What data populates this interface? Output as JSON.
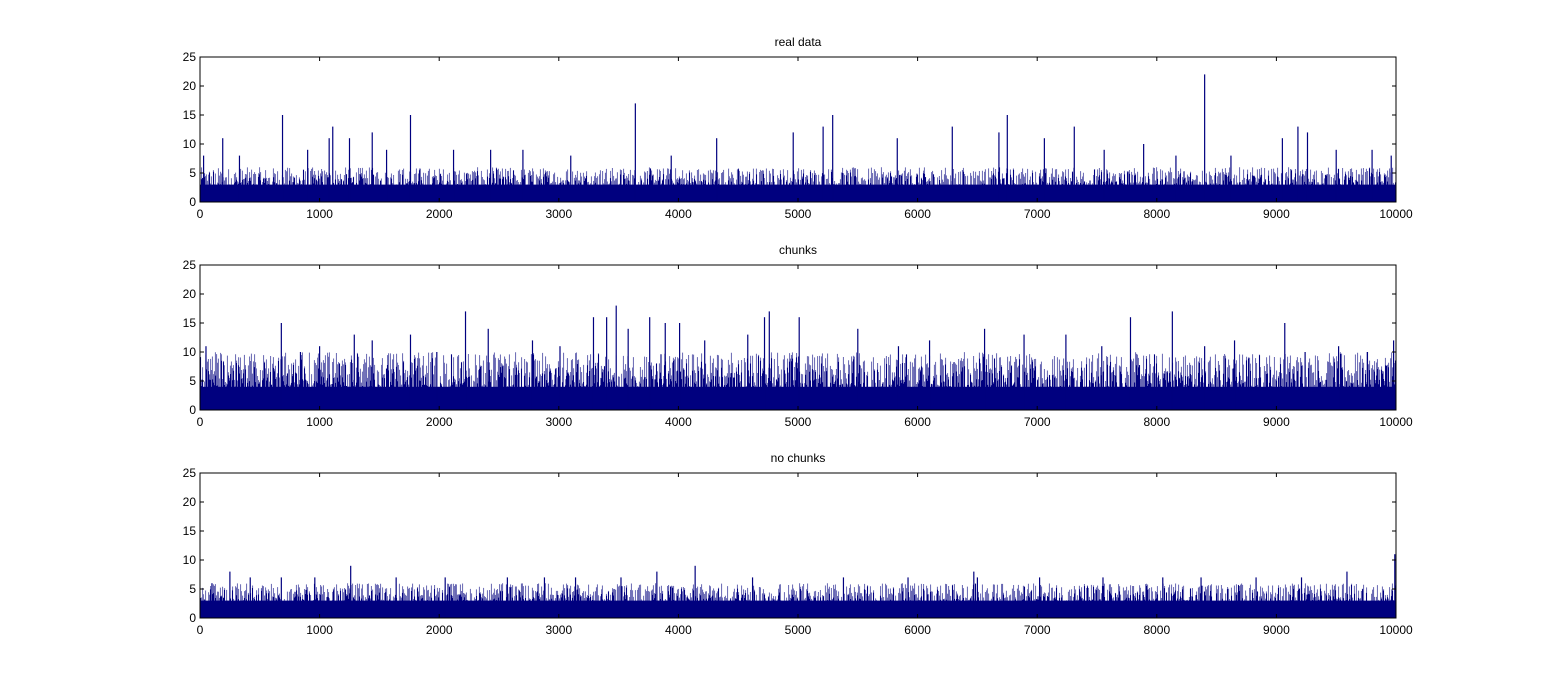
{
  "bar_color": "#00007f",
  "axis_color": "#000000",
  "chart_data": [
    {
      "type": "bar",
      "title": "real data",
      "xlabel": "",
      "ylabel": "",
      "xlim": [
        0,
        10000
      ],
      "ylim": [
        0,
        25
      ],
      "xticks": [
        0,
        1000,
        2000,
        3000,
        4000,
        5000,
        6000,
        7000,
        8000,
        9000,
        10000
      ],
      "yticks": [
        0,
        5,
        10,
        15,
        20,
        25
      ],
      "grid": false,
      "legend": "none",
      "n_bins": 10000,
      "baseline": 3,
      "typical_range": [
        2,
        6
      ],
      "peaks": [
        {
          "x": 30,
          "y": 8
        },
        {
          "x": 190,
          "y": 11
        },
        {
          "x": 330,
          "y": 8
        },
        {
          "x": 690,
          "y": 15
        },
        {
          "x": 900,
          "y": 9
        },
        {
          "x": 1080,
          "y": 11
        },
        {
          "x": 1110,
          "y": 13
        },
        {
          "x": 1250,
          "y": 11
        },
        {
          "x": 1440,
          "y": 12
        },
        {
          "x": 1560,
          "y": 9
        },
        {
          "x": 1760,
          "y": 15
        },
        {
          "x": 2120,
          "y": 9
        },
        {
          "x": 2430,
          "y": 9
        },
        {
          "x": 2700,
          "y": 9
        },
        {
          "x": 3100,
          "y": 8
        },
        {
          "x": 3640,
          "y": 17
        },
        {
          "x": 3940,
          "y": 8
        },
        {
          "x": 4320,
          "y": 11
        },
        {
          "x": 4960,
          "y": 12
        },
        {
          "x": 5210,
          "y": 13
        },
        {
          "x": 5290,
          "y": 15
        },
        {
          "x": 5830,
          "y": 11
        },
        {
          "x": 6290,
          "y": 13
        },
        {
          "x": 6680,
          "y": 12
        },
        {
          "x": 6750,
          "y": 15
        },
        {
          "x": 7060,
          "y": 11
        },
        {
          "x": 7310,
          "y": 13
        },
        {
          "x": 7560,
          "y": 9
        },
        {
          "x": 7890,
          "y": 10
        },
        {
          "x": 8160,
          "y": 8
        },
        {
          "x": 8400,
          "y": 22
        },
        {
          "x": 8620,
          "y": 8
        },
        {
          "x": 9050,
          "y": 11
        },
        {
          "x": 9180,
          "y": 13
        },
        {
          "x": 9260,
          "y": 12
        },
        {
          "x": 9500,
          "y": 9
        },
        {
          "x": 9800,
          "y": 9
        },
        {
          "x": 9960,
          "y": 8
        }
      ]
    },
    {
      "type": "bar",
      "title": "chunks",
      "xlabel": "",
      "ylabel": "",
      "xlim": [
        0,
        10000
      ],
      "ylim": [
        0,
        25
      ],
      "xticks": [
        0,
        1000,
        2000,
        3000,
        4000,
        5000,
        6000,
        7000,
        8000,
        9000,
        10000
      ],
      "yticks": [
        0,
        5,
        10,
        15,
        20,
        25
      ],
      "grid": false,
      "legend": "none",
      "n_bins": 10000,
      "baseline": 4,
      "typical_range": [
        3,
        10
      ],
      "peaks": [
        {
          "x": 50,
          "y": 11
        },
        {
          "x": 680,
          "y": 15
        },
        {
          "x": 840,
          "y": 10
        },
        {
          "x": 1000,
          "y": 11
        },
        {
          "x": 1290,
          "y": 13
        },
        {
          "x": 1440,
          "y": 12
        },
        {
          "x": 1760,
          "y": 13
        },
        {
          "x": 1980,
          "y": 10
        },
        {
          "x": 2220,
          "y": 17
        },
        {
          "x": 2410,
          "y": 14
        },
        {
          "x": 2780,
          "y": 12
        },
        {
          "x": 3010,
          "y": 11
        },
        {
          "x": 3290,
          "y": 16
        },
        {
          "x": 3400,
          "y": 16
        },
        {
          "x": 3480,
          "y": 18
        },
        {
          "x": 3580,
          "y": 14
        },
        {
          "x": 3760,
          "y": 16
        },
        {
          "x": 3890,
          "y": 15
        },
        {
          "x": 4010,
          "y": 15
        },
        {
          "x": 4220,
          "y": 12
        },
        {
          "x": 4580,
          "y": 13
        },
        {
          "x": 4720,
          "y": 16
        },
        {
          "x": 4760,
          "y": 17
        },
        {
          "x": 5010,
          "y": 16
        },
        {
          "x": 5500,
          "y": 14
        },
        {
          "x": 5840,
          "y": 11
        },
        {
          "x": 6100,
          "y": 12
        },
        {
          "x": 6560,
          "y": 14
        },
        {
          "x": 6890,
          "y": 13
        },
        {
          "x": 7240,
          "y": 13
        },
        {
          "x": 7540,
          "y": 11
        },
        {
          "x": 7780,
          "y": 16
        },
        {
          "x": 8130,
          "y": 17
        },
        {
          "x": 8400,
          "y": 11
        },
        {
          "x": 8650,
          "y": 12
        },
        {
          "x": 9070,
          "y": 15
        },
        {
          "x": 9240,
          "y": 10
        },
        {
          "x": 9520,
          "y": 11
        },
        {
          "x": 9760,
          "y": 10
        },
        {
          "x": 9980,
          "y": 12
        }
      ]
    },
    {
      "type": "bar",
      "title": "no chunks",
      "xlabel": "",
      "ylabel": "",
      "xlim": [
        0,
        10000
      ],
      "ylim": [
        0,
        25
      ],
      "xticks": [
        0,
        1000,
        2000,
        3000,
        4000,
        5000,
        6000,
        7000,
        8000,
        9000,
        10000
      ],
      "yticks": [
        0,
        5,
        10,
        15,
        20,
        25
      ],
      "grid": false,
      "legend": "none",
      "n_bins": 10000,
      "baseline": 3,
      "typical_range": [
        2,
        6
      ],
      "peaks": [
        {
          "x": 100,
          "y": 6
        },
        {
          "x": 250,
          "y": 8
        },
        {
          "x": 420,
          "y": 7
        },
        {
          "x": 680,
          "y": 7
        },
        {
          "x": 960,
          "y": 7
        },
        {
          "x": 1260,
          "y": 9
        },
        {
          "x": 1640,
          "y": 7
        },
        {
          "x": 2050,
          "y": 7
        },
        {
          "x": 2570,
          "y": 7
        },
        {
          "x": 2880,
          "y": 7
        },
        {
          "x": 3140,
          "y": 7
        },
        {
          "x": 3520,
          "y": 7
        },
        {
          "x": 3820,
          "y": 8
        },
        {
          "x": 4140,
          "y": 9
        },
        {
          "x": 4620,
          "y": 7
        },
        {
          "x": 5380,
          "y": 7
        },
        {
          "x": 5920,
          "y": 7
        },
        {
          "x": 6470,
          "y": 8
        },
        {
          "x": 6500,
          "y": 7
        },
        {
          "x": 7020,
          "y": 7
        },
        {
          "x": 7550,
          "y": 7
        },
        {
          "x": 8050,
          "y": 7
        },
        {
          "x": 8370,
          "y": 7
        },
        {
          "x": 8830,
          "y": 7
        },
        {
          "x": 9210,
          "y": 7
        },
        {
          "x": 9590,
          "y": 8
        },
        {
          "x": 9990,
          "y": 11
        }
      ]
    }
  ]
}
